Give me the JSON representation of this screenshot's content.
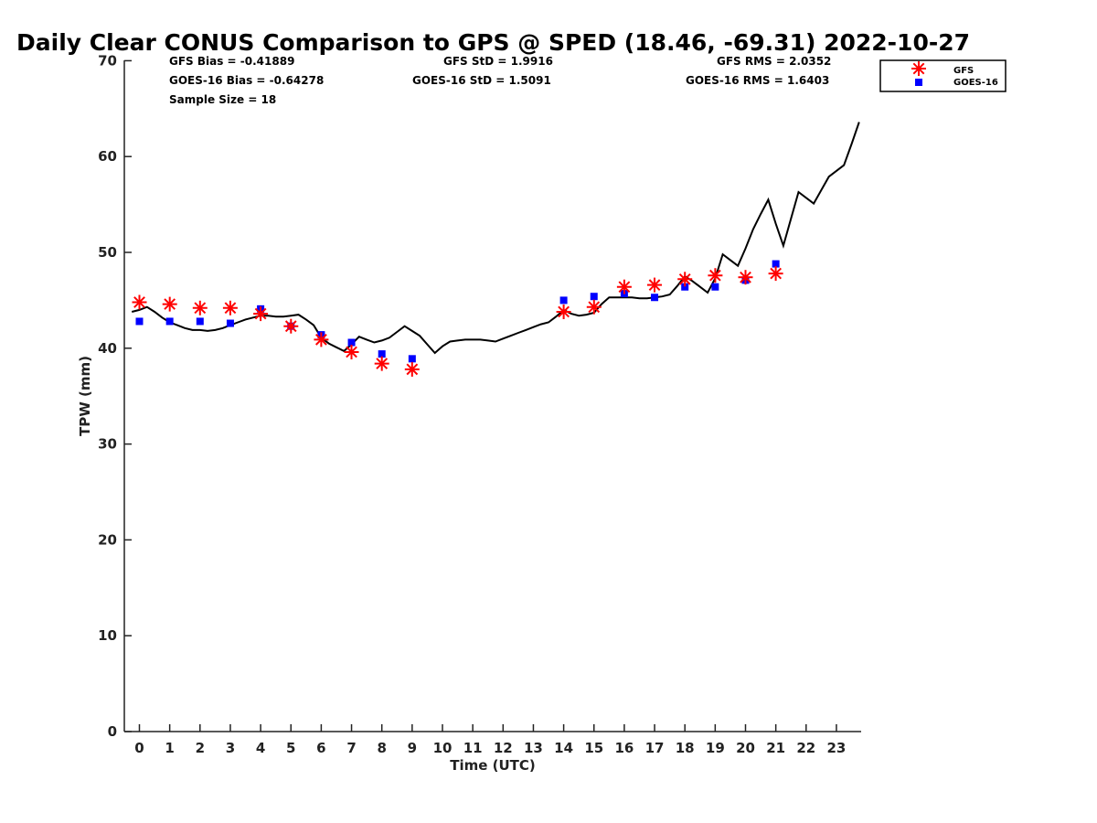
{
  "chart_data": {
    "type": "line+scatter",
    "title": "Daily Clear CONUS Comparison to GPS @ SPED (18.46, -69.31) 2022-10-27",
    "xlabel": "Time (UTC)",
    "ylabel": "TPW (mm)",
    "xlim": [
      -0.5,
      23.75
    ],
    "ylim": [
      0,
      70
    ],
    "x_ticks": [
      0,
      1,
      2,
      3,
      4,
      5,
      6,
      7,
      8,
      9,
      10,
      11,
      12,
      13,
      14,
      15,
      16,
      17,
      18,
      19,
      20,
      21,
      22,
      23
    ],
    "y_ticks": [
      0,
      10,
      20,
      30,
      40,
      50,
      60,
      70
    ],
    "stats": {
      "gfs_bias": "GFS Bias = -0.41889",
      "goes_bias": "GOES-16 Bias = -0.64278",
      "sample_size": "Sample Size = 18",
      "gfs_std": "GFS StD = 1.9916",
      "goes_std": "GOES-16 StD = 1.5091",
      "gfs_rms": "GFS RMS = 2.0352",
      "goes_rms": "GOES-16 RMS = 1.6403"
    },
    "legend": {
      "position": "top-right",
      "gfs_label": "GFS",
      "goes_label": "GOES-16"
    },
    "series": [
      {
        "name": "GPS",
        "style": "line",
        "color": "#000000",
        "x": [
          -0.25,
          0,
          0.25,
          0.5,
          0.75,
          1,
          1.25,
          1.5,
          1.75,
          2,
          2.25,
          2.5,
          2.75,
          3,
          3.25,
          3.5,
          3.75,
          4,
          4.25,
          4.5,
          4.75,
          5,
          5.25,
          5.5,
          5.75,
          6,
          6.25,
          6.5,
          6.75,
          7,
          7.25,
          7.5,
          7.75,
          8,
          8.25,
          8.5,
          8.75,
          9,
          9.25,
          9.5,
          9.75,
          10,
          10.25,
          10.5,
          10.75,
          11,
          11.25,
          11.5,
          11.75,
          12,
          12.25,
          12.5,
          12.75,
          13,
          13.25,
          13.5,
          13.75,
          14,
          14.25,
          14.5,
          14.75,
          15,
          15.25,
          15.5,
          15.75,
          16,
          16.25,
          16.5,
          16.75,
          17,
          17.25,
          17.5,
          17.75,
          18,
          18.25,
          18.5,
          18.75,
          19,
          19.25,
          19.5,
          19.75,
          20,
          20.25,
          20.5,
          20.75,
          21,
          21.25,
          21.5,
          21.75,
          22,
          22.25,
          22.5,
          22.75,
          23,
          23.25,
          23.5,
          23.75
        ],
        "y": [
          43.8,
          44.0,
          44.3,
          43.8,
          43.2,
          42.7,
          42.4,
          42.1,
          41.9,
          41.9,
          41.8,
          41.9,
          42.1,
          42.4,
          42.7,
          43.0,
          43.2,
          43.4,
          43.4,
          43.3,
          43.3,
          43.4,
          43.5,
          43.0,
          42.4,
          41.1,
          40.5,
          40.1,
          39.7,
          40.4,
          41.2,
          40.9,
          40.6,
          40.8,
          41.1,
          41.7,
          42.3,
          41.8,
          41.3,
          40.4,
          39.5,
          40.2,
          40.7,
          40.8,
          40.9,
          40.9,
          40.9,
          40.8,
          40.7,
          41.0,
          41.3,
          41.6,
          41.9,
          42.2,
          42.5,
          42.7,
          43.3,
          44.0,
          43.6,
          43.4,
          43.5,
          43.7,
          44.6,
          45.3,
          45.3,
          45.3,
          45.3,
          45.2,
          45.2,
          45.3,
          45.4,
          45.6,
          46.5,
          47.5,
          47.0,
          46.4,
          45.8,
          47.3,
          49.8,
          49.2,
          48.6,
          50.4,
          52.4,
          54.0,
          55.5,
          53.0,
          50.7,
          53.5,
          56.3,
          55.7,
          55.1,
          56.5,
          57.9,
          58.5,
          59.1,
          61.3,
          63.6
        ]
      },
      {
        "name": "GFS",
        "style": "asterisk",
        "color": "#ff0000",
        "x": [
          0,
          1,
          2,
          3,
          4,
          5,
          6,
          7,
          8,
          9,
          14,
          15,
          16,
          17,
          18,
          19,
          20,
          21
        ],
        "y": [
          44.8,
          44.6,
          44.2,
          44.2,
          43.6,
          42.3,
          40.9,
          39.6,
          38.4,
          37.8,
          43.8,
          44.3,
          46.4,
          46.6,
          47.2,
          47.6,
          47.4,
          47.8
        ]
      },
      {
        "name": "GOES-16",
        "style": "square",
        "color": "#0000ff",
        "x": [
          0,
          1,
          2,
          3,
          4,
          5,
          6,
          7,
          8,
          9,
          14,
          15,
          16,
          17,
          18,
          19,
          20,
          21
        ],
        "y": [
          42.8,
          42.8,
          42.8,
          42.6,
          44.1,
          42.3,
          41.4,
          40.6,
          39.4,
          38.9,
          45.0,
          45.4,
          45.7,
          45.3,
          46.4,
          46.4,
          47.1,
          48.8
        ]
      }
    ]
  }
}
